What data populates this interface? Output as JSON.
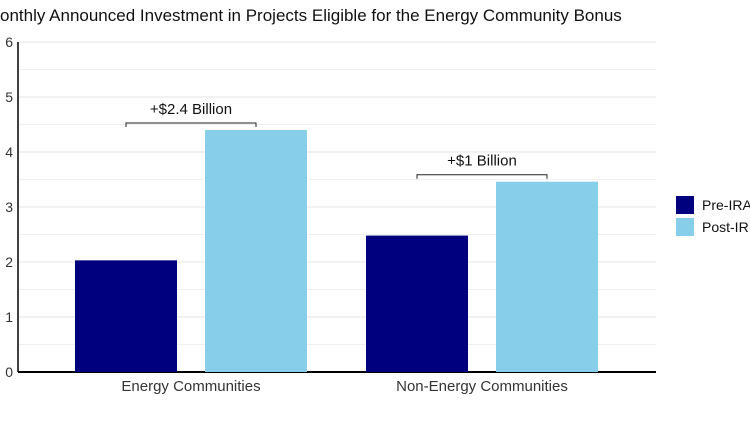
{
  "chart_data": {
    "type": "bar",
    "title": "onthly Announced Investment in Projects Eligible for the Energy Community Bonus",
    "categories": [
      "Energy Communities",
      "Non-Energy Communities"
    ],
    "series": [
      {
        "name": "Pre-IRA",
        "values": [
          2.03,
          2.48
        ],
        "color": "#00007f"
      },
      {
        "name": "Post-IR",
        "values": [
          4.4,
          3.46
        ],
        "color": "#87ceeb"
      }
    ],
    "ylim": [
      0,
      6
    ],
    "yticks": [
      "0",
      "1",
      "2",
      "3",
      "4",
      "5",
      "6"
    ],
    "grid": true,
    "legend": "right",
    "annotations": [
      {
        "category": "Energy Communities",
        "text": "+$2.4 Billion"
      },
      {
        "category": "Non-Energy Communities",
        "text": "+$1 Billion"
      }
    ],
    "xlabel": "",
    "ylabel": ""
  }
}
